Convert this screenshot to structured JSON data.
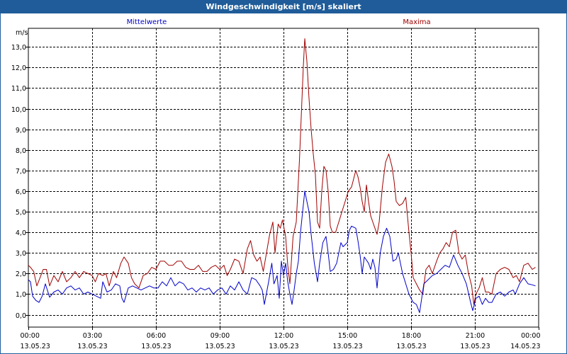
{
  "window": {
    "title": "Windgeschwindigkeit [m/s] skaliert"
  },
  "colors": {
    "titlebar": "#1f5c99",
    "mean": "#0000c8",
    "max": "#a00000",
    "grid": "#000000"
  },
  "chart_data": {
    "type": "line",
    "title": "Windgeschwindigkeit [m/s] skaliert",
    "ylabel": "m/s",
    "xlabel": "",
    "ylim": [
      -0.6,
      13.9
    ],
    "yticks": [
      0,
      1,
      2,
      3,
      4,
      5,
      6,
      7,
      8,
      9,
      10,
      11,
      12,
      13
    ],
    "ytick_labels": [
      "0,0",
      "1,0",
      "2,0",
      "3,0",
      "4,0",
      "5,0",
      "6,0",
      "7,0",
      "8,0",
      "9,0",
      "10,0",
      "11,0",
      "12,0",
      "13,0"
    ],
    "xlim": [
      0,
      24
    ],
    "xticks": [
      0,
      3,
      6,
      9,
      12,
      15,
      18,
      21,
      24
    ],
    "xtick_time_labels": [
      "00:00",
      "03:00",
      "06:00",
      "09:00",
      "12:00",
      "15:00",
      "18:00",
      "21:00",
      "00:00"
    ],
    "xtick_date_labels": [
      "13.05.23",
      "13.05.23",
      "13.05.23",
      "13.05.23",
      "13.05.23",
      "13.05.23",
      "13.05.23",
      "13.05.23",
      "14.05.23"
    ],
    "grid": true,
    "legend": [
      "Mittelwerte",
      "Maxima"
    ],
    "series": [
      {
        "name": "Mittelwerte",
        "color": "#0000c8",
        "points": [
          [
            0.0,
            1.7
          ],
          [
            0.1,
            1.6
          ],
          [
            0.2,
            0.9
          ],
          [
            0.35,
            0.7
          ],
          [
            0.5,
            0.6
          ],
          [
            0.65,
            0.9
          ],
          [
            0.8,
            1.5
          ],
          [
            1.0,
            0.85
          ],
          [
            1.2,
            1.1
          ],
          [
            1.4,
            1.2
          ],
          [
            1.6,
            1.0
          ],
          [
            1.8,
            1.3
          ],
          [
            2.0,
            1.4
          ],
          [
            2.2,
            1.2
          ],
          [
            2.4,
            1.3
          ],
          [
            2.6,
            1.0
          ],
          [
            2.8,
            1.1
          ],
          [
            3.0,
            1.0
          ],
          [
            3.2,
            0.9
          ],
          [
            3.4,
            0.8
          ],
          [
            3.5,
            1.6
          ],
          [
            3.7,
            1.1
          ],
          [
            3.9,
            1.2
          ],
          [
            4.1,
            1.5
          ],
          [
            4.3,
            1.4
          ],
          [
            4.4,
            0.8
          ],
          [
            4.5,
            0.6
          ],
          [
            4.7,
            1.3
          ],
          [
            4.9,
            1.4
          ],
          [
            5.1,
            1.3
          ],
          [
            5.3,
            1.2
          ],
          [
            5.5,
            1.3
          ],
          [
            5.7,
            1.4
          ],
          [
            5.9,
            1.3
          ],
          [
            6.1,
            1.3
          ],
          [
            6.3,
            1.6
          ],
          [
            6.5,
            1.4
          ],
          [
            6.7,
            1.8
          ],
          [
            6.9,
            1.4
          ],
          [
            7.1,
            1.6
          ],
          [
            7.3,
            1.5
          ],
          [
            7.5,
            1.2
          ],
          [
            7.7,
            1.3
          ],
          [
            7.9,
            1.1
          ],
          [
            8.1,
            1.3
          ],
          [
            8.3,
            1.2
          ],
          [
            8.5,
            1.3
          ],
          [
            8.7,
            1.0
          ],
          [
            8.9,
            1.2
          ],
          [
            9.1,
            1.3
          ],
          [
            9.3,
            1.0
          ],
          [
            9.5,
            1.4
          ],
          [
            9.7,
            1.2
          ],
          [
            9.9,
            1.6
          ],
          [
            10.1,
            1.2
          ],
          [
            10.3,
            1.0
          ],
          [
            10.5,
            1.8
          ],
          [
            10.7,
            1.7
          ],
          [
            10.9,
            1.4
          ],
          [
            11.0,
            1.2
          ],
          [
            11.1,
            0.5
          ],
          [
            11.3,
            1.6
          ],
          [
            11.45,
            2.5
          ],
          [
            11.55,
            1.5
          ],
          [
            11.7,
            1.9
          ],
          [
            11.8,
            0.8
          ],
          [
            11.9,
            2.6
          ],
          [
            12.0,
            1.9
          ],
          [
            12.1,
            2.5
          ],
          [
            12.2,
            1.6
          ],
          [
            12.3,
            1.0
          ],
          [
            12.4,
            0.5
          ],
          [
            12.5,
            1.2
          ],
          [
            12.6,
            2.0
          ],
          [
            12.7,
            2.6
          ],
          [
            12.8,
            4.0
          ],
          [
            12.9,
            5.0
          ],
          [
            13.0,
            6.0
          ],
          [
            13.1,
            5.5
          ],
          [
            13.2,
            5.0
          ],
          [
            13.3,
            3.9
          ],
          [
            13.45,
            2.5
          ],
          [
            13.6,
            1.6
          ],
          [
            13.7,
            2.5
          ],
          [
            13.85,
            3.5
          ],
          [
            14.0,
            3.8
          ],
          [
            14.1,
            3.0
          ],
          [
            14.2,
            2.1
          ],
          [
            14.35,
            2.2
          ],
          [
            14.5,
            2.5
          ],
          [
            14.7,
            3.5
          ],
          [
            14.8,
            3.3
          ],
          [
            15.0,
            3.5
          ],
          [
            15.1,
            4.1
          ],
          [
            15.2,
            4.3
          ],
          [
            15.4,
            4.2
          ],
          [
            15.5,
            3.6
          ],
          [
            15.6,
            2.9
          ],
          [
            15.7,
            2.0
          ],
          [
            15.8,
            2.8
          ],
          [
            16.0,
            2.5
          ],
          [
            16.1,
            2.2
          ],
          [
            16.2,
            2.7
          ],
          [
            16.3,
            2.3
          ],
          [
            16.4,
            1.3
          ],
          [
            16.55,
            3.0
          ],
          [
            16.7,
            3.8
          ],
          [
            16.85,
            4.2
          ],
          [
            17.0,
            3.8
          ],
          [
            17.15,
            2.6
          ],
          [
            17.3,
            2.7
          ],
          [
            17.4,
            3.0
          ],
          [
            17.5,
            2.5
          ],
          [
            17.6,
            2.0
          ],
          [
            17.75,
            1.5
          ],
          [
            17.9,
            1.0
          ],
          [
            18.1,
            0.6
          ],
          [
            18.25,
            0.5
          ],
          [
            18.4,
            0.1
          ],
          [
            18.6,
            1.5
          ],
          [
            18.8,
            1.7
          ],
          [
            19.0,
            1.9
          ],
          [
            19.2,
            2.0
          ],
          [
            19.4,
            2.2
          ],
          [
            19.6,
            2.4
          ],
          [
            19.8,
            2.3
          ],
          [
            20.0,
            2.9
          ],
          [
            20.2,
            2.4
          ],
          [
            20.4,
            2.0
          ],
          [
            20.6,
            1.5
          ],
          [
            20.8,
            0.6
          ],
          [
            20.9,
            0.2
          ],
          [
            21.05,
            0.8
          ],
          [
            21.2,
            0.9
          ],
          [
            21.35,
            0.5
          ],
          [
            21.5,
            0.8
          ],
          [
            21.65,
            0.6
          ],
          [
            21.8,
            0.6
          ],
          [
            22.0,
            1.0
          ],
          [
            22.2,
            1.1
          ],
          [
            22.4,
            0.9
          ],
          [
            22.6,
            1.1
          ],
          [
            22.8,
            1.2
          ],
          [
            22.9,
            1.0
          ],
          [
            23.1,
            1.5
          ],
          [
            23.3,
            1.8
          ],
          [
            23.5,
            1.5
          ],
          [
            23.7,
            1.45
          ],
          [
            23.85,
            1.4
          ]
        ]
      },
      {
        "name": "Maxima",
        "color": "#a00000",
        "points": [
          [
            0.0,
            2.4
          ],
          [
            0.1,
            2.3
          ],
          [
            0.25,
            2.1
          ],
          [
            0.4,
            1.4
          ],
          [
            0.55,
            1.8
          ],
          [
            0.7,
            2.2
          ],
          [
            0.85,
            2.2
          ],
          [
            1.0,
            1.4
          ],
          [
            1.2,
            1.9
          ],
          [
            1.4,
            1.6
          ],
          [
            1.6,
            2.1
          ],
          [
            1.8,
            1.6
          ],
          [
            2.0,
            1.8
          ],
          [
            2.2,
            2.1
          ],
          [
            2.4,
            1.8
          ],
          [
            2.6,
            2.1
          ],
          [
            2.8,
            2.0
          ],
          [
            3.0,
            1.9
          ],
          [
            3.15,
            1.6
          ],
          [
            3.3,
            2.0
          ],
          [
            3.5,
            1.9
          ],
          [
            3.65,
            2.0
          ],
          [
            3.8,
            1.4
          ],
          [
            4.0,
            2.1
          ],
          [
            4.15,
            1.8
          ],
          [
            4.35,
            2.5
          ],
          [
            4.5,
            2.8
          ],
          [
            4.7,
            2.5
          ],
          [
            4.85,
            1.8
          ],
          [
            5.0,
            1.5
          ],
          [
            5.2,
            1.3
          ],
          [
            5.4,
            1.9
          ],
          [
            5.6,
            2.0
          ],
          [
            5.8,
            2.3
          ],
          [
            6.0,
            2.2
          ],
          [
            6.2,
            2.6
          ],
          [
            6.4,
            2.6
          ],
          [
            6.6,
            2.4
          ],
          [
            6.8,
            2.4
          ],
          [
            7.0,
            2.6
          ],
          [
            7.2,
            2.6
          ],
          [
            7.4,
            2.3
          ],
          [
            7.6,
            2.2
          ],
          [
            7.8,
            2.2
          ],
          [
            8.0,
            2.4
          ],
          [
            8.2,
            2.1
          ],
          [
            8.4,
            2.1
          ],
          [
            8.6,
            2.3
          ],
          [
            8.8,
            2.4
          ],
          [
            9.0,
            2.2
          ],
          [
            9.2,
            2.4
          ],
          [
            9.35,
            1.9
          ],
          [
            9.5,
            2.2
          ],
          [
            9.7,
            2.7
          ],
          [
            9.9,
            2.6
          ],
          [
            10.1,
            2.0
          ],
          [
            10.3,
            3.2
          ],
          [
            10.45,
            3.6
          ],
          [
            10.6,
            2.9
          ],
          [
            10.75,
            2.6
          ],
          [
            10.9,
            2.8
          ],
          [
            11.05,
            2.1
          ],
          [
            11.2,
            3.0
          ],
          [
            11.35,
            3.9
          ],
          [
            11.5,
            4.5
          ],
          [
            11.6,
            3.0
          ],
          [
            11.75,
            4.4
          ],
          [
            11.85,
            4.2
          ],
          [
            11.95,
            4.6
          ],
          [
            12.1,
            3.8
          ],
          [
            12.2,
            2.4
          ],
          [
            12.3,
            1.5
          ],
          [
            12.45,
            3.8
          ],
          [
            12.6,
            4.5
          ],
          [
            12.75,
            7.5
          ],
          [
            12.85,
            10.0
          ],
          [
            12.93,
            12.0
          ],
          [
            13.0,
            13.4
          ],
          [
            13.1,
            12.3
          ],
          [
            13.2,
            10.5
          ],
          [
            13.3,
            9.0
          ],
          [
            13.4,
            7.8
          ],
          [
            13.5,
            6.8
          ],
          [
            13.6,
            4.5
          ],
          [
            13.7,
            4.2
          ],
          [
            13.8,
            6.0
          ],
          [
            13.9,
            7.2
          ],
          [
            14.0,
            7.0
          ],
          [
            14.1,
            6.0
          ],
          [
            14.2,
            4.3
          ],
          [
            14.3,
            4.0
          ],
          [
            14.45,
            4.0
          ],
          [
            14.6,
            4.5
          ],
          [
            14.75,
            5.0
          ],
          [
            14.9,
            5.5
          ],
          [
            15.05,
            6.0
          ],
          [
            15.2,
            6.2
          ],
          [
            15.3,
            6.6
          ],
          [
            15.4,
            7.0
          ],
          [
            15.5,
            6.7
          ],
          [
            15.6,
            6.2
          ],
          [
            15.7,
            5.5
          ],
          [
            15.8,
            5.0
          ],
          [
            15.9,
            6.3
          ],
          [
            16.0,
            5.5
          ],
          [
            16.1,
            4.8
          ],
          [
            16.2,
            4.5
          ],
          [
            16.3,
            4.2
          ],
          [
            16.4,
            3.9
          ],
          [
            16.5,
            4.5
          ],
          [
            16.65,
            6.2
          ],
          [
            16.8,
            7.4
          ],
          [
            16.95,
            7.8
          ],
          [
            17.1,
            7.2
          ],
          [
            17.2,
            6.5
          ],
          [
            17.3,
            5.5
          ],
          [
            17.45,
            5.3
          ],
          [
            17.6,
            5.4
          ],
          [
            17.75,
            5.7
          ],
          [
            17.9,
            4.0
          ],
          [
            18.0,
            3.0
          ],
          [
            18.1,
            1.8
          ],
          [
            18.25,
            1.5
          ],
          [
            18.4,
            1.2
          ],
          [
            18.55,
            1.0
          ],
          [
            18.7,
            2.2
          ],
          [
            18.85,
            2.4
          ],
          [
            19.0,
            2.0
          ],
          [
            19.2,
            2.6
          ],
          [
            19.35,
            3.0
          ],
          [
            19.5,
            3.2
          ],
          [
            19.65,
            3.5
          ],
          [
            19.8,
            3.3
          ],
          [
            19.95,
            4.0
          ],
          [
            20.1,
            4.1
          ],
          [
            20.25,
            3.0
          ],
          [
            20.4,
            2.7
          ],
          [
            20.55,
            2.9
          ],
          [
            20.7,
            2.0
          ],
          [
            20.85,
            1.4
          ],
          [
            20.95,
            0.5
          ],
          [
            21.05,
            1.0
          ],
          [
            21.2,
            1.3
          ],
          [
            21.35,
            1.8
          ],
          [
            21.5,
            1.1
          ],
          [
            21.65,
            1.1
          ],
          [
            21.8,
            1.0
          ],
          [
            22.0,
            2.0
          ],
          [
            22.2,
            2.2
          ],
          [
            22.4,
            2.3
          ],
          [
            22.6,
            2.2
          ],
          [
            22.8,
            1.8
          ],
          [
            22.95,
            1.9
          ],
          [
            23.1,
            1.6
          ],
          [
            23.3,
            2.4
          ],
          [
            23.5,
            2.5
          ],
          [
            23.7,
            2.2
          ],
          [
            23.85,
            2.3
          ]
        ]
      }
    ]
  }
}
